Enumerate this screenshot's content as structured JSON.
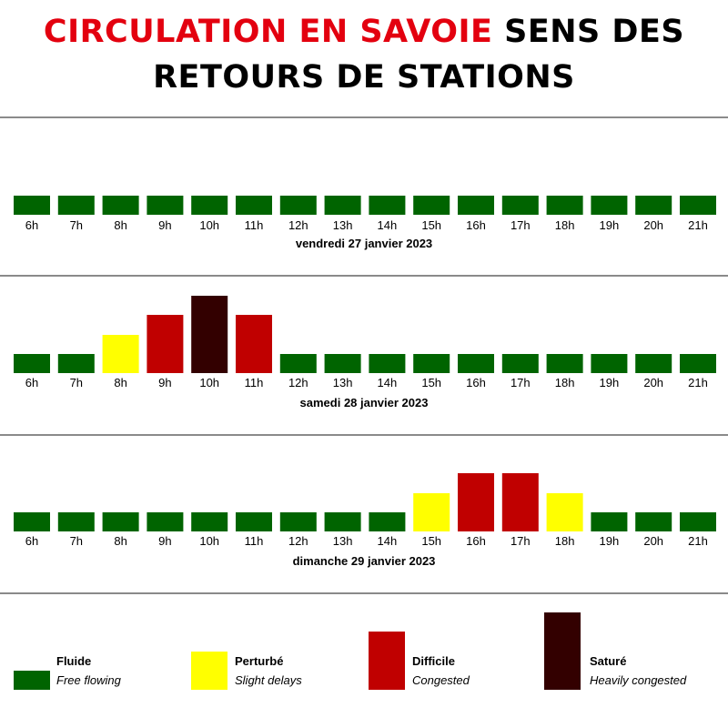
{
  "title": {
    "part_red": "CIRCULATION EN SAVOIE",
    "part_black": "SENS DES RETOURS DE STATIONS"
  },
  "chart_data": [
    {
      "type": "bar",
      "title": "vendredi 27 janvier 2023",
      "categories": [
        "6h",
        "7h",
        "8h",
        "9h",
        "10h",
        "11h",
        "12h",
        "13h",
        "14h",
        "15h",
        "16h",
        "17h",
        "18h",
        "19h",
        "20h",
        "21h"
      ],
      "values": [
        "Fluide",
        "Fluide",
        "Fluide",
        "Fluide",
        "Fluide",
        "Fluide",
        "Fluide",
        "Fluide",
        "Fluide",
        "Fluide",
        "Fluide",
        "Fluide",
        "Fluide",
        "Fluide",
        "Fluide",
        "Fluide"
      ]
    },
    {
      "type": "bar",
      "title": "samedi 28 janvier 2023",
      "categories": [
        "6h",
        "7h",
        "8h",
        "9h",
        "10h",
        "11h",
        "12h",
        "13h",
        "14h",
        "15h",
        "16h",
        "17h",
        "18h",
        "19h",
        "20h",
        "21h"
      ],
      "values": [
        "Fluide",
        "Fluide",
        "Perturbé",
        "Difficile",
        "Saturé",
        "Difficile",
        "Fluide",
        "Fluide",
        "Fluide",
        "Fluide",
        "Fluide",
        "Fluide",
        "Fluide",
        "Fluide",
        "Fluide",
        "Fluide"
      ]
    },
    {
      "type": "bar",
      "title": "dimanche 29 janvier 2023",
      "categories": [
        "6h",
        "7h",
        "8h",
        "9h",
        "10h",
        "11h",
        "12h",
        "13h",
        "14h",
        "15h",
        "16h",
        "17h",
        "18h",
        "19h",
        "20h",
        "21h"
      ],
      "values": [
        "Fluide",
        "Fluide",
        "Fluide",
        "Fluide",
        "Fluide",
        "Fluide",
        "Fluide",
        "Fluide",
        "Fluide",
        "Perturbé",
        "Difficile",
        "Difficile",
        "Perturbé",
        "Fluide",
        "Fluide",
        "Fluide"
      ]
    }
  ],
  "levels": [
    {
      "key": "Fluide",
      "rank": 1,
      "label": "Fluide",
      "sublabel": "Free flowing",
      "color": "#006400"
    },
    {
      "key": "Perturbé",
      "rank": 2,
      "label": "Perturbé",
      "sublabel": "Slight delays",
      "color": "#ffff00"
    },
    {
      "key": "Difficile",
      "rank": 3,
      "label": "Difficile",
      "sublabel": "Congested",
      "color": "#c00000"
    },
    {
      "key": "Saturé",
      "rank": 4,
      "label": "Saturé",
      "sublabel": "Heavily congested",
      "color": "#330000"
    }
  ]
}
